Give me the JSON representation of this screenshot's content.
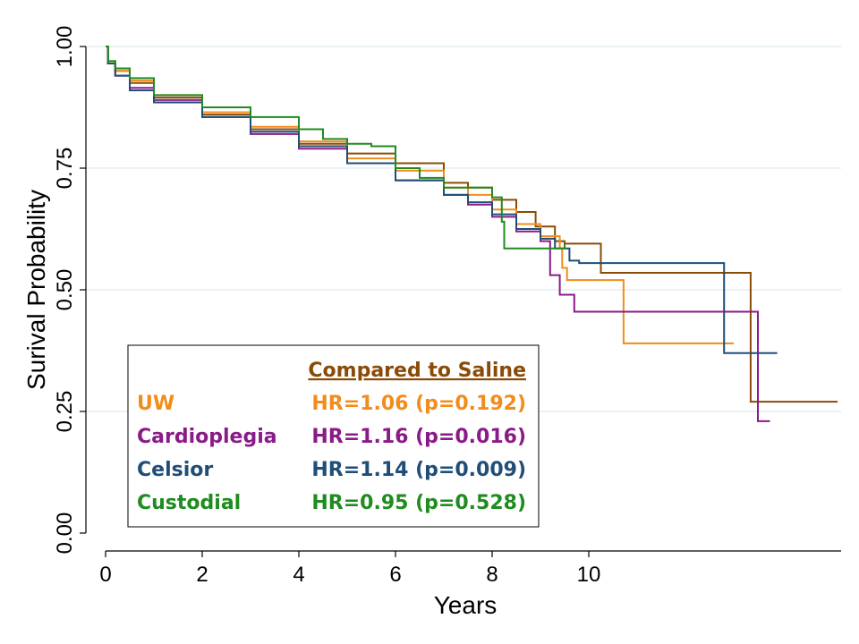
{
  "chart_data": {
    "type": "line",
    "title": "",
    "xlabel": "Years",
    "ylabel": "Surival Probability",
    "xlim": [
      0,
      15.3
    ],
    "ylim": [
      0,
      1.0
    ],
    "x_ticks": [
      0,
      2,
      4,
      6,
      8,
      10
    ],
    "x_tick_labels": [
      "0",
      "2",
      "4",
      "6",
      "8",
      "10"
    ],
    "y_ticks": [
      0,
      0.25,
      0.5,
      0.75,
      1.0
    ],
    "y_tick_labels": [
      "0.00",
      "0.25",
      "0.50",
      "0.75",
      "1.00"
    ],
    "grid": true,
    "step": true,
    "series": [
      {
        "name": "Saline",
        "color": "#8a4b08",
        "points": [
          [
            0,
            1.0
          ],
          [
            0.05,
            0.97
          ],
          [
            0.2,
            0.95
          ],
          [
            0.5,
            0.925
          ],
          [
            1,
            0.895
          ],
          [
            2,
            0.86
          ],
          [
            3,
            0.83
          ],
          [
            4,
            0.8
          ],
          [
            5,
            0.78
          ],
          [
            6,
            0.76
          ],
          [
            7,
            0.72
          ],
          [
            7.5,
            0.71
          ],
          [
            8,
            0.685
          ],
          [
            8.5,
            0.66
          ],
          [
            8.9,
            0.63
          ],
          [
            9.3,
            0.6
          ],
          [
            9.5,
            0.595
          ],
          [
            10.2,
            0.595
          ],
          [
            10.25,
            0.535
          ],
          [
            13.3,
            0.535
          ],
          [
            13.35,
            0.27
          ],
          [
            15.15,
            0.27
          ]
        ]
      },
      {
        "name": "UW",
        "color": "#f28c1a",
        "points": [
          [
            0,
            1.0
          ],
          [
            0.05,
            0.97
          ],
          [
            0.2,
            0.95
          ],
          [
            0.5,
            0.93
          ],
          [
            1,
            0.9
          ],
          [
            2,
            0.865
          ],
          [
            3,
            0.835
          ],
          [
            4,
            0.805
          ],
          [
            5,
            0.77
          ],
          [
            6,
            0.745
          ],
          [
            7,
            0.71
          ],
          [
            7.5,
            0.695
          ],
          [
            8,
            0.665
          ],
          [
            8.5,
            0.635
          ],
          [
            9,
            0.61
          ],
          [
            9.4,
            0.585
          ],
          [
            9.45,
            0.545
          ],
          [
            9.55,
            0.52
          ],
          [
            10.7,
            0.52
          ],
          [
            10.72,
            0.39
          ],
          [
            13.0,
            0.39
          ]
        ]
      },
      {
        "name": "Cardioplegia",
        "color": "#8b1a89",
        "points": [
          [
            0,
            1.0
          ],
          [
            0.05,
            0.965
          ],
          [
            0.2,
            0.94
          ],
          [
            0.5,
            0.915
          ],
          [
            1,
            0.89
          ],
          [
            2,
            0.855
          ],
          [
            3,
            0.82
          ],
          [
            4,
            0.79
          ],
          [
            5,
            0.76
          ],
          [
            6,
            0.725
          ],
          [
            7,
            0.695
          ],
          [
            7.5,
            0.675
          ],
          [
            8,
            0.65
          ],
          [
            8.5,
            0.62
          ],
          [
            9,
            0.6
          ],
          [
            9.2,
            0.53
          ],
          [
            9.4,
            0.49
          ],
          [
            9.7,
            0.455
          ],
          [
            13.45,
            0.455
          ],
          [
            13.5,
            0.23
          ],
          [
            13.75,
            0.23
          ]
        ]
      },
      {
        "name": "Celsior",
        "color": "#1f4e79",
        "points": [
          [
            0,
            1.0
          ],
          [
            0.05,
            0.965
          ],
          [
            0.2,
            0.94
          ],
          [
            0.5,
            0.91
          ],
          [
            1,
            0.885
          ],
          [
            2,
            0.855
          ],
          [
            3,
            0.825
          ],
          [
            4,
            0.795
          ],
          [
            5,
            0.76
          ],
          [
            6,
            0.725
          ],
          [
            7,
            0.695
          ],
          [
            7.5,
            0.68
          ],
          [
            8,
            0.655
          ],
          [
            8.5,
            0.625
          ],
          [
            9,
            0.605
          ],
          [
            9.3,
            0.585
          ],
          [
            9.6,
            0.56
          ],
          [
            9.8,
            0.555
          ],
          [
            12.75,
            0.555
          ],
          [
            12.8,
            0.37
          ],
          [
            13.9,
            0.37
          ]
        ]
      },
      {
        "name": "Custodial",
        "color": "#1e8c1e",
        "points": [
          [
            0,
            1.0
          ],
          [
            0.05,
            0.97
          ],
          [
            0.2,
            0.955
          ],
          [
            0.5,
            0.935
          ],
          [
            1,
            0.9
          ],
          [
            2,
            0.875
          ],
          [
            3,
            0.855
          ],
          [
            4,
            0.83
          ],
          [
            4.5,
            0.81
          ],
          [
            5,
            0.8
          ],
          [
            5.5,
            0.795
          ],
          [
            6,
            0.75
          ],
          [
            6.5,
            0.73
          ],
          [
            7,
            0.71
          ],
          [
            7.5,
            0.71
          ],
          [
            8,
            0.69
          ],
          [
            8.2,
            0.64
          ],
          [
            8.25,
            0.585
          ],
          [
            9.4,
            0.585
          ],
          [
            9.5,
            0.595
          ]
        ]
      }
    ],
    "legend": {
      "placement": "bottom-left",
      "header": "Compared to Saline",
      "header_color": "#8a4b08",
      "entries": [
        {
          "label": "UW",
          "stat": "HR=1.06 (p=0.192)",
          "color": "#f28c1a"
        },
        {
          "label": "Cardioplegia",
          "stat": "HR=1.16 (p=0.016)",
          "color": "#8b1a89"
        },
        {
          "label": "Celsior",
          "stat": "HR=1.14 (p=0.009)",
          "color": "#1f4e79"
        },
        {
          "label": "Custodial",
          "stat": "HR=0.95 (p=0.528)",
          "color": "#1e8c1e"
        }
      ]
    }
  }
}
